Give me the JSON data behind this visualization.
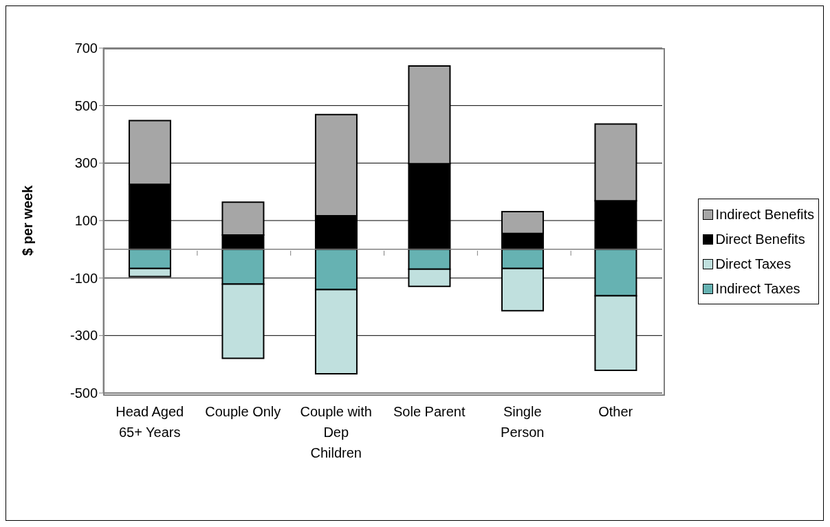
{
  "chart_data": {
    "type": "bar",
    "ylabel": "$ per week",
    "categories": [
      "Head Aged 65+ Years",
      "Couple Only",
      "Couple with Dep Children",
      "Sole Parent",
      "Single Person",
      "Other"
    ],
    "stacked": true,
    "series": [
      {
        "name": "Indirect Taxes",
        "color": "#66b2b2",
        "values": [
          -67,
          -121,
          -140,
          -69,
          -67,
          -162
        ]
      },
      {
        "name": "Direct Taxes",
        "color": "#c0e0de",
        "values": [
          -28,
          -258,
          -293,
          -60,
          -147,
          -259
        ]
      },
      {
        "name": "Direct Benefits",
        "color": "#000000",
        "values": [
          226,
          50,
          117,
          298,
          55,
          169
        ]
      },
      {
        "name": "Indirect Benefits",
        "color": "#a6a6a6",
        "values": [
          222,
          114,
          352,
          340,
          76,
          267
        ]
      }
    ],
    "ylim": [
      -500,
      700
    ],
    "yticks": [
      -500,
      -300,
      -100,
      100,
      300,
      500,
      700
    ],
    "grid": "y",
    "legend": "right",
    "ref_lines": [
      {
        "axis": "y",
        "value": 0,
        "color": "#808080"
      }
    ]
  }
}
